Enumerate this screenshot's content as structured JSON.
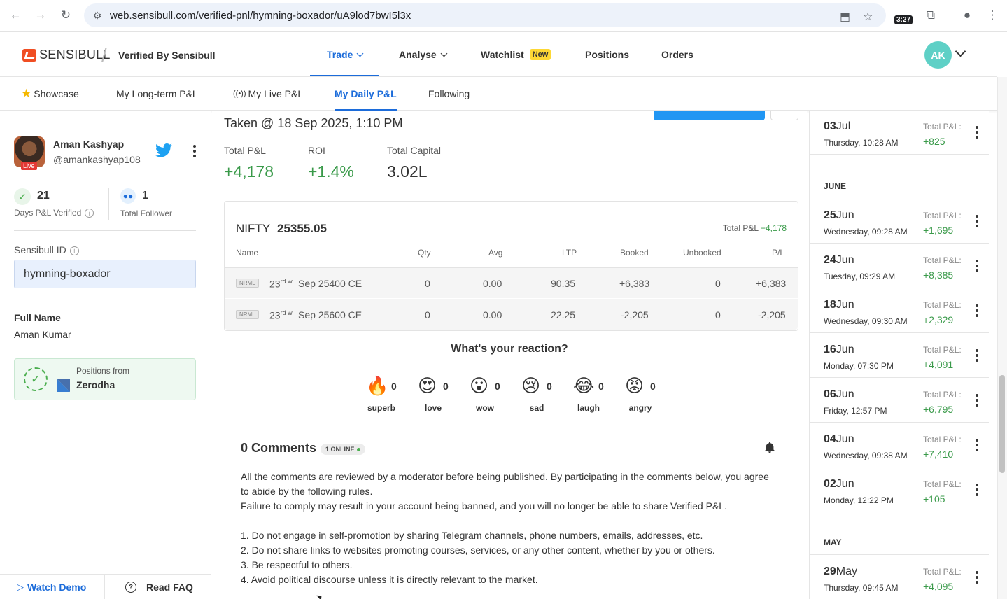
{
  "browser": {
    "url": "web.sensibull.com/verified-pnl/hymning-boxador/uA9lod7bwI5l3x",
    "timer": "3:27"
  },
  "header": {
    "logo_text": "SENSIBULL",
    "verified_by": "Verified By Sensibull",
    "nav": [
      {
        "label": "Trade",
        "active": true
      },
      {
        "label": "Analyse"
      },
      {
        "label": "Watchlist",
        "badge": "New"
      },
      {
        "label": "Positions"
      },
      {
        "label": "Orders"
      }
    ],
    "avatar_initials": "AK"
  },
  "subtabs": [
    {
      "label": "Showcase",
      "icon": "star-icon"
    },
    {
      "label": "My Long-term P&L"
    },
    {
      "label": "My Live P&L",
      "icon": "broadcast-icon"
    },
    {
      "label": "My Daily P&L",
      "active": true
    },
    {
      "label": "Following"
    }
  ],
  "profile": {
    "name": "Aman Kashyap",
    "handle": "@amankashyap108",
    "live_tag": "Live",
    "days_verified": "21",
    "days_verified_label": "Days P&L Verified",
    "followers": "1",
    "followers_label": "Total Follower",
    "sensibull_id_label": "Sensibull ID",
    "sensibull_id": "hymning-boxador",
    "full_name_label": "Full Name",
    "full_name": "Aman Kumar",
    "positions_from_label": "Positions from",
    "broker": "Zerodha"
  },
  "left_footer": {
    "watch_demo": "Watch Demo",
    "read_faq": "Read FAQ"
  },
  "snapshot": {
    "taken": "Taken @ 18 Sep 2025, 1:10 PM",
    "total_pl_label": "Total P&L",
    "total_pl": "+4,178",
    "roi_label": "ROI",
    "roi": "+1.4%",
    "total_capital_label": "Total Capital",
    "total_capital": "3.02L"
  },
  "positions": {
    "index_name": "NIFTY",
    "index_value": "25355.05",
    "total_label": "Total P&L",
    "total_value": "+4,178",
    "headers": [
      "Name",
      "Qty",
      "Avg",
      "LTP",
      "Booked",
      "Unbooked",
      "P/L"
    ],
    "rows": [
      {
        "product": "NRML",
        "day": "23",
        "suffix": "rd w",
        "name": "Sep 25400 CE",
        "qty": "0",
        "avg": "0.00",
        "ltp": "90.35",
        "booked": "+6,383",
        "unbooked": "0",
        "pl": "+6,383"
      },
      {
        "product": "NRML",
        "day": "23",
        "suffix": "rd w",
        "name": "Sep 25600 CE",
        "qty": "0",
        "avg": "0.00",
        "ltp": "22.25",
        "booked": "-2,205",
        "unbooked": "0",
        "pl": "-2,205"
      }
    ]
  },
  "reactions": {
    "title": "What's your reaction?",
    "items": [
      {
        "emoji": "🔥",
        "count": "0",
        "label": "superb"
      },
      {
        "emoji": "😍",
        "count": "0",
        "label": "love"
      },
      {
        "emoji": "😮",
        "count": "0",
        "label": "wow"
      },
      {
        "emoji": "😢",
        "count": "0",
        "label": "sad"
      },
      {
        "emoji": "😂",
        "count": "0",
        "label": "laugh"
      },
      {
        "emoji": "😡",
        "count": "0",
        "label": "angry"
      }
    ]
  },
  "comments": {
    "title": "0 Comments",
    "online": "1 ONLINE",
    "rules_intro": "All the comments are reviewed by a moderator before being published. By participating in the comments below, you agree to abide by the following rules.",
    "rules_warning": "Failure to comply may result in your account being banned, and you will no longer be able to share Verified P&L.",
    "rules": [
      "1. Do not engage in self-promotion by sharing Telegram channels, phone numbers, emails, addresses, etc.",
      "2. Do not share links to websites promoting courses, services, or any other content, whether by you or others.",
      "3. Be respectful to others.",
      "4. Avoid political discourse unless it is directly relevant to the market."
    ]
  },
  "history": {
    "total_label": "Total P&L:",
    "items": [
      {
        "day": "03",
        "month": "Jul",
        "weekday": "Thursday",
        "time": ", 10:28 AM",
        "pl": "+825"
      },
      {
        "month_header": "JUNE"
      },
      {
        "day": "25",
        "month": "Jun",
        "weekday": "Wednesday",
        "time": ", 09:28 AM",
        "pl": "+1,695"
      },
      {
        "day": "24",
        "month": "Jun",
        "weekday": "Tuesday",
        "time": ", 09:29 AM",
        "pl": "+8,385"
      },
      {
        "day": "18",
        "month": "Jun",
        "weekday": "Wednesday",
        "time": ", 09:30 AM",
        "pl": "+2,329"
      },
      {
        "day": "16",
        "month": "Jun",
        "weekday": "Monday",
        "time": ", 07:30 PM",
        "pl": "+4,091"
      },
      {
        "day": "06",
        "month": "Jun",
        "weekday": "Friday",
        "time": ", 12:57 PM",
        "pl": "+6,795"
      },
      {
        "day": "04",
        "month": "Jun",
        "weekday": "Wednesday",
        "time": ", 09:38 AM",
        "pl": "+7,410"
      },
      {
        "day": "02",
        "month": "Jun",
        "weekday": "Monday",
        "time": ", 12:22 PM",
        "pl": "+105"
      },
      {
        "month_header": "MAY"
      },
      {
        "day": "29",
        "month": "May",
        "weekday": "Thursday",
        "time": ", 09:45 AM",
        "pl": "+4,095"
      }
    ]
  },
  "colors": {
    "accent": "#1c6cda",
    "positive": "#3a9a4a",
    "brand": "#f04e23"
  }
}
